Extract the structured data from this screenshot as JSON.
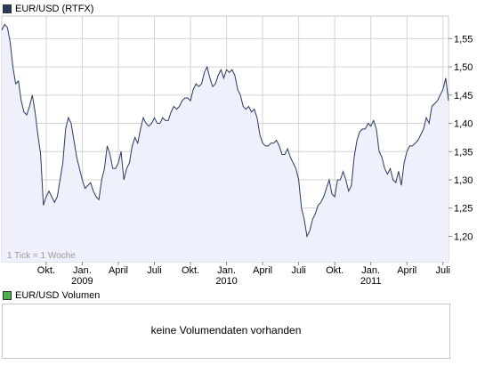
{
  "price_panel": {
    "title": "EUR/USD (RTFX)",
    "swatch_color": "#2b3a5c",
    "note": "1 Tick = 1 Woche"
  },
  "volume_panel": {
    "title": "EUR/USD Volumen",
    "swatch_color": "#4caf50",
    "message": "keine Volumendaten vorhanden"
  },
  "colors": {
    "line": "#2b3a5c",
    "fill": "#eef0fb",
    "grid": "#d4d4d4",
    "frame": "#c8c8c8"
  },
  "chart_data": {
    "type": "area",
    "title": "EUR/USD (RTFX)",
    "xlabel": "",
    "ylabel": "",
    "ylim": [
      1.155,
      1.59
    ],
    "grid": true,
    "y_ticks": [
      "1,20",
      "1,25",
      "1,30",
      "1,35",
      "1,40",
      "1,45",
      "1,50",
      "1,55"
    ],
    "y_tick_values": [
      1.2,
      1.25,
      1.3,
      1.35,
      1.4,
      1.45,
      1.5,
      1.55
    ],
    "x_ticks": [
      {
        "label": "Okt.",
        "year": "",
        "week": 16
      },
      {
        "label": "Jan.",
        "year": "2009",
        "week": 29
      },
      {
        "label": "April",
        "year": "",
        "week": 42
      },
      {
        "label": "Juli",
        "year": "",
        "week": 55
      },
      {
        "label": "Okt.",
        "year": "",
        "week": 68
      },
      {
        "label": "Jan.",
        "year": "2010",
        "week": 81
      },
      {
        "label": "April",
        "year": "",
        "week": 94
      },
      {
        "label": "Juli",
        "year": "",
        "week": 107
      },
      {
        "label": "Okt.",
        "year": "",
        "week": 120
      },
      {
        "label": "Jan.",
        "year": "2011",
        "week": 133
      },
      {
        "label": "April",
        "year": "",
        "week": 146
      },
      {
        "label": "Juli",
        "year": "",
        "week": 159
      }
    ],
    "week_range": [
      0,
      161
    ],
    "series": [
      {
        "values": [
          1.565,
          1.575,
          1.57,
          1.545,
          1.5,
          1.47,
          1.475,
          1.44,
          1.42,
          1.415,
          1.43,
          1.45,
          1.42,
          1.38,
          1.345,
          1.255,
          1.27,
          1.28,
          1.27,
          1.26,
          1.27,
          1.3,
          1.33,
          1.39,
          1.41,
          1.4,
          1.37,
          1.34,
          1.32,
          1.3,
          1.285,
          1.29,
          1.295,
          1.28,
          1.27,
          1.265,
          1.3,
          1.32,
          1.36,
          1.345,
          1.32,
          1.32,
          1.33,
          1.35,
          1.3,
          1.32,
          1.33,
          1.36,
          1.375,
          1.365,
          1.39,
          1.41,
          1.4,
          1.395,
          1.4,
          1.41,
          1.4,
          1.4,
          1.41,
          1.405,
          1.405,
          1.42,
          1.43,
          1.425,
          1.43,
          1.44,
          1.445,
          1.445,
          1.44,
          1.46,
          1.47,
          1.465,
          1.47,
          1.49,
          1.5,
          1.48,
          1.465,
          1.47,
          1.485,
          1.495,
          1.48,
          1.495,
          1.49,
          1.495,
          1.485,
          1.46,
          1.45,
          1.43,
          1.425,
          1.43,
          1.42,
          1.425,
          1.41,
          1.38,
          1.365,
          1.36,
          1.36,
          1.365,
          1.365,
          1.37,
          1.36,
          1.345,
          1.345,
          1.355,
          1.34,
          1.33,
          1.32,
          1.3,
          1.25,
          1.23,
          1.2,
          1.21,
          1.23,
          1.24,
          1.255,
          1.26,
          1.27,
          1.285,
          1.3,
          1.275,
          1.27,
          1.3,
          1.3,
          1.315,
          1.3,
          1.28,
          1.29,
          1.34,
          1.37,
          1.385,
          1.39,
          1.39,
          1.4,
          1.395,
          1.405,
          1.39,
          1.35,
          1.34,
          1.32,
          1.31,
          1.32,
          1.3,
          1.295,
          1.315,
          1.29,
          1.33,
          1.35,
          1.36,
          1.36,
          1.365,
          1.37,
          1.38,
          1.39,
          1.41,
          1.4,
          1.43,
          1.435,
          1.44,
          1.45,
          1.46,
          1.48,
          1.44
        ]
      }
    ]
  }
}
